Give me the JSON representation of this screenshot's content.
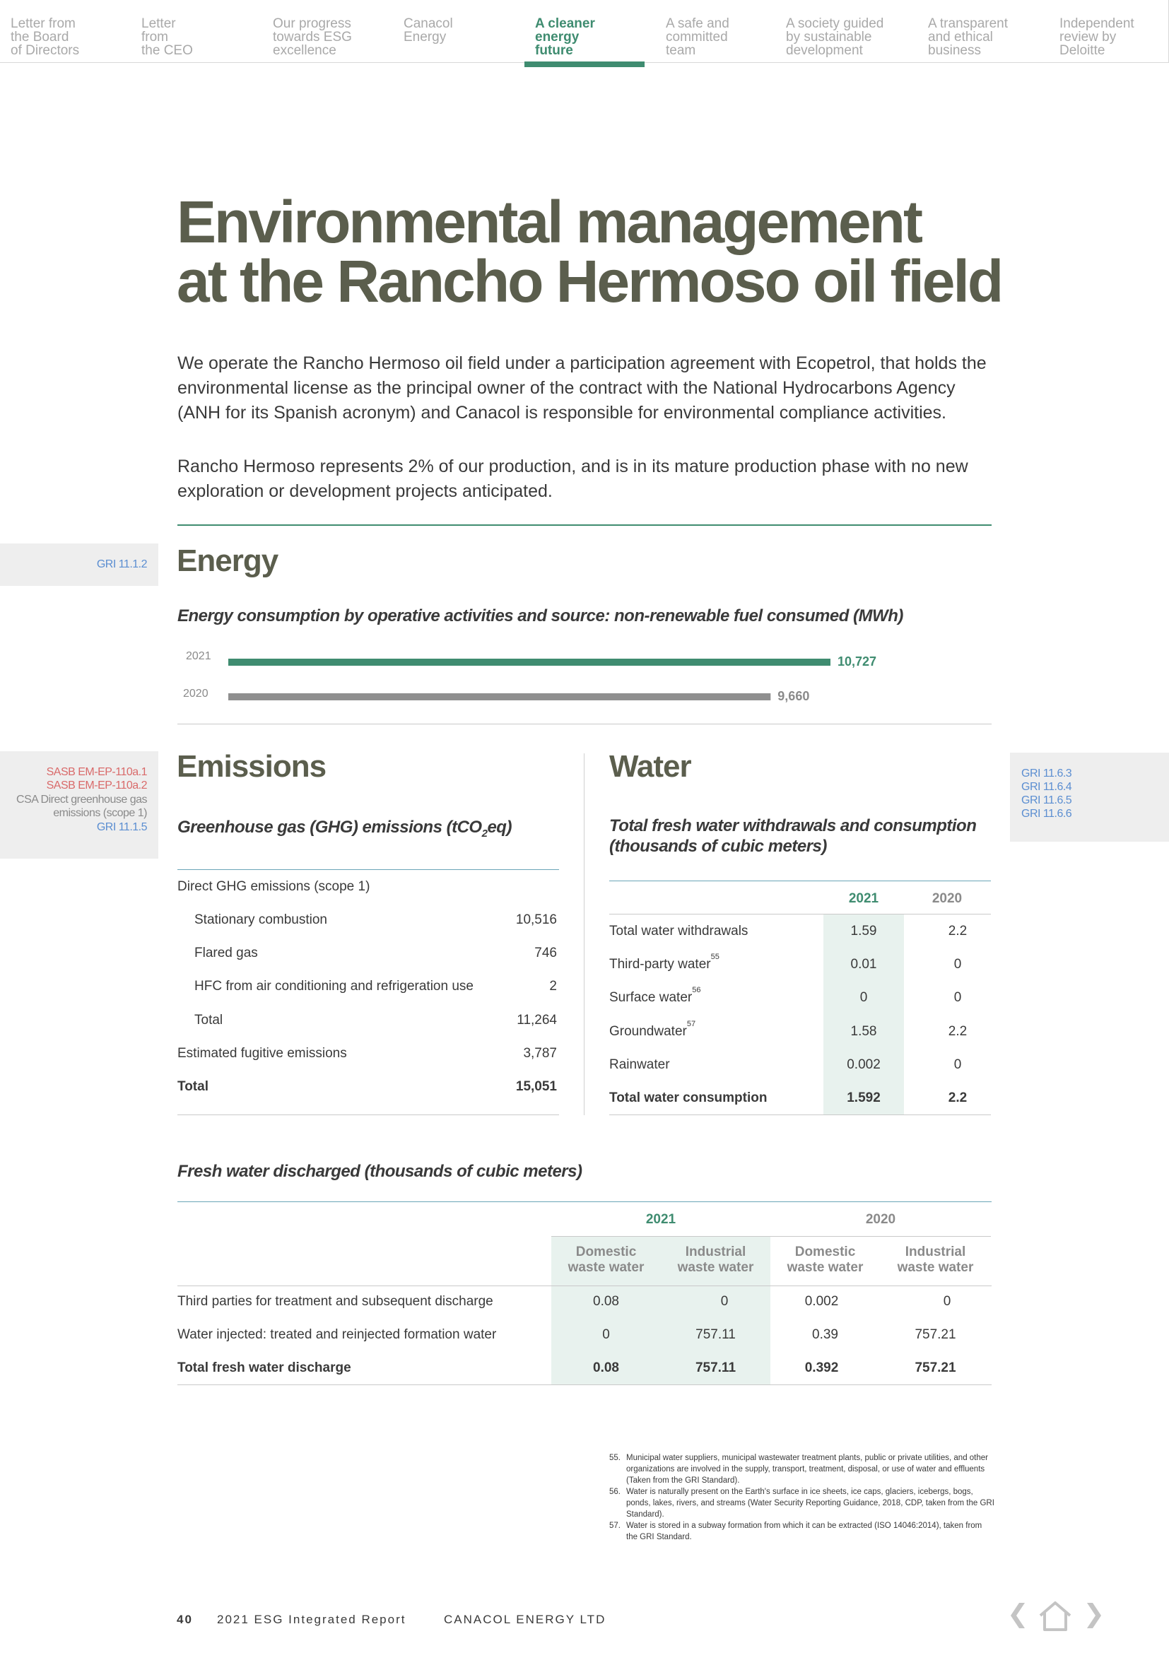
{
  "nav": {
    "items": [
      {
        "label": "Letter from\nthe Board\nof Directors"
      },
      {
        "label": "Letter\nfrom\nthe CEO"
      },
      {
        "label": "Our progress\ntowards ESG\nexcellence"
      },
      {
        "label": "Canacol\nEnergy"
      },
      {
        "label": "A cleaner\nenergy\nfuture",
        "active": true
      },
      {
        "label": "A safe and\ncommitted\nteam"
      },
      {
        "label": "A society guided\nby sustainable\ndevelopment"
      },
      {
        "label": "A transparent\nand ethical\nbusiness"
      },
      {
        "label": "Independent\nreview by\nDeloitte"
      }
    ],
    "active_color": "#3f8c70",
    "inactive_color": "#a9a9a9"
  },
  "page": {
    "title": "Environmental management\nat the Rancho Hermoso oil field",
    "intro_p1": "We operate the Rancho Hermoso oil field under a participation agreement with Ecopetrol, that holds the environmental license as the principal owner of the contract with the National Hydrocarbons Agency (ANH for its Spanish acronym) and Canacol is responsible for environmental compliance activities.",
    "intro_p2": "Rancho Hermoso represents 2% of our production, and is in its mature production phase with no new exploration or development projects anticipated."
  },
  "energy": {
    "gri_tag": "GRI 11.1.2",
    "heading": "Energy",
    "subtitle": "Energy consumption by operative activities and source: non-renewable fuel consumed (MWh)"
  },
  "chart_data": {
    "type": "bar",
    "orientation": "horizontal",
    "title": "Energy consumption by operative activities and source: non-renewable fuel consumed (MWh)",
    "categories": [
      "2021",
      "2020"
    ],
    "values": [
      10727,
      9660
    ],
    "value_labels": [
      "10,727",
      "9,660"
    ],
    "colors": [
      "#3f8c70",
      "#8f8f8f"
    ],
    "xlim": [
      0,
      10727
    ],
    "grid": false,
    "legend": "none"
  },
  "emissions": {
    "sasb_tags": [
      "SASB EM-EP-110a.1",
      "SASB EM-EP-110a.2"
    ],
    "csa_tag": "CSA Direct greenhouse gas emissions (scope 1)",
    "gri_tag": "GRI 11.1.5",
    "heading": "Emissions",
    "subtitle_pre": "Greenhouse gas (GHG) emissions (tCO",
    "subtitle_sub": "2",
    "subtitle_post": "eq)",
    "group_label": "Direct GHG emissions (scope 1)",
    "rows": [
      {
        "label": "Stationary combustion",
        "value": "10,516",
        "indent": true,
        "bold": false
      },
      {
        "label": "Flared gas",
        "value": "746",
        "indent": true,
        "bold": false
      },
      {
        "label": "HFC from air conditioning and refrigeration use",
        "value": "2",
        "indent": true,
        "bold": false
      },
      {
        "label": "Total",
        "value": "11,264",
        "indent": true,
        "bold": false
      },
      {
        "label": "Estimated fugitive emissions",
        "value": "3,787",
        "indent": false,
        "bold": false
      },
      {
        "label": "Total",
        "value": "15,051",
        "indent": false,
        "bold": true
      }
    ]
  },
  "water": {
    "gri_tags": [
      "GRI 11.6.3",
      "GRI 11.6.4",
      "GRI 11.6.5",
      "GRI 11.6.6"
    ],
    "heading": "Water",
    "subtitle": "Total fresh water withdrawals and consumption\n(thousands of cubic meters)",
    "col_2021": "2021",
    "col_2020": "2020",
    "rows": [
      {
        "label": "Total water withdrawals",
        "sup": "",
        "v2021": "1.59",
        "v2020": "2.2",
        "bold": false
      },
      {
        "label": "Third-party water",
        "sup": "55",
        "v2021": "0.01",
        "v2020": "0",
        "bold": false
      },
      {
        "label": "Surface water",
        "sup": "56",
        "v2021": "0",
        "v2020": "0",
        "bold": false
      },
      {
        "label": "Groundwater",
        "sup": "57",
        "v2021": "1.58",
        "v2020": "2.2",
        "bold": false
      },
      {
        "label": "Rainwater",
        "sup": "",
        "v2021": "0.002",
        "v2020": "0",
        "bold": false
      },
      {
        "label": "Total water consumption",
        "sup": "",
        "v2021": "1.592",
        "v2020": "2.2",
        "bold": true
      }
    ]
  },
  "discharge": {
    "subtitle": "Fresh water discharged (thousands of cubic meters)",
    "year_2021": "2021",
    "year_2020": "2020",
    "sub_domestic": "Domestic\nwaste water",
    "sub_industrial": "Industrial\nwaste water",
    "rows": [
      {
        "label": "Third parties for treatment and subsequent discharge",
        "d2021": "0.08",
        "i2021": "0",
        "d2020": "0.002",
        "i2020": "0",
        "bold": false
      },
      {
        "label": "Water injected: treated and reinjected formation water",
        "d2021": "0",
        "i2021": "757.11",
        "d2020": "0.39",
        "i2020": "757.21",
        "bold": false
      },
      {
        "label": "Total fresh water discharge",
        "d2021": "0.08",
        "i2021": "757.11",
        "d2020": "0.392",
        "i2020": "757.21",
        "bold": true
      }
    ]
  },
  "footnotes": [
    {
      "num": "55.",
      "text": "Municipal water suppliers, municipal wastewater treatment plants, public or private utilities, and other organizations are involved in the supply, transport, treatment, disposal, or use of water and effluents (Taken from the GRI Standard)."
    },
    {
      "num": "56.",
      "text": "Water is naturally present on the Earth's surface in ice sheets, ice caps, glaciers, icebergs, bogs, ponds, lakes, rivers, and streams (Water Security Reporting Guidance, 2018, CDP, taken from the GRI Standard)."
    },
    {
      "num": "57.",
      "text": "Water is stored in a subway formation from which it can be extracted (ISO 14046:2014), taken from the GRI Standard."
    }
  ],
  "footer": {
    "page_number": "40",
    "report": "2021 ESG Integrated Report",
    "company": "CANACOL ENERGY LTD",
    "icons": [
      "chevron-left-icon",
      "home-icon",
      "chevron-right-icon"
    ]
  }
}
